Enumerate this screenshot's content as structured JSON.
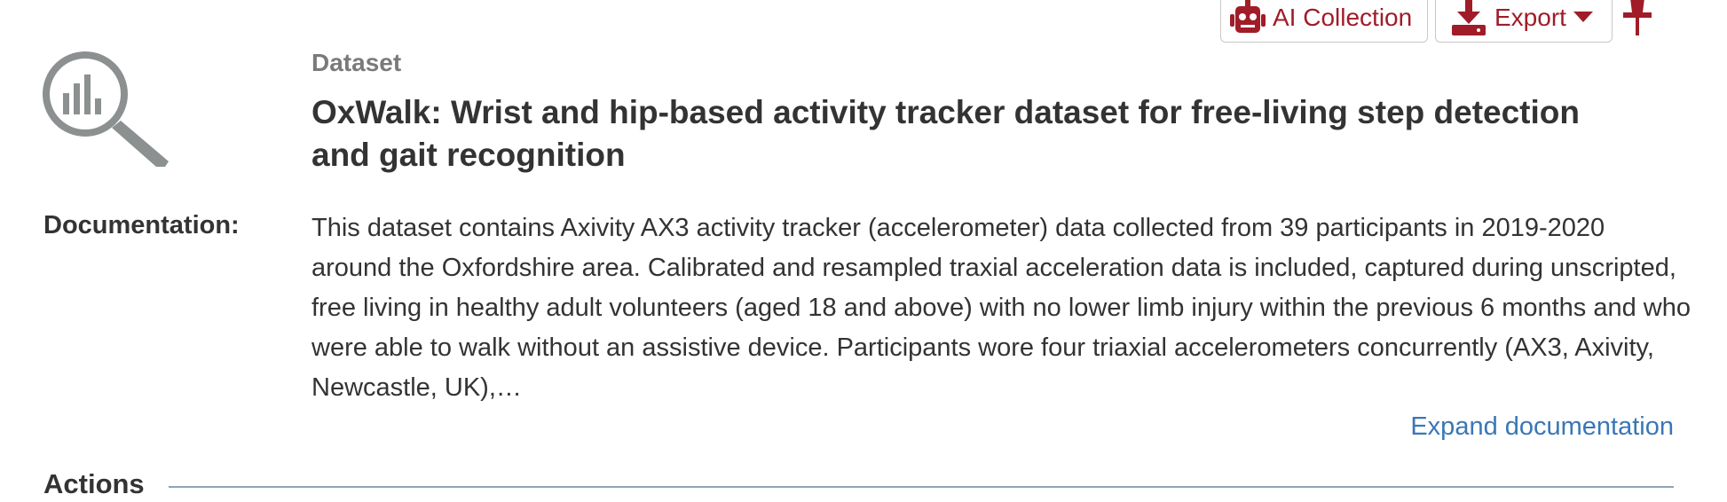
{
  "toolbar": {
    "ai_collection_label": "AI Collection",
    "export_label": "Export"
  },
  "icons": {
    "ai": "robot-icon",
    "export": "download-icon",
    "export_caret": "caret-down-icon",
    "pin": "pin-icon",
    "dataset": "magnifier-chart-icon"
  },
  "colors": {
    "accent": "#a01c28",
    "link": "#3a77b5",
    "muted": "#7a7a7a",
    "rule": "#8fa3b8"
  },
  "record": {
    "type": "Dataset",
    "title": "OxWalk: Wrist and hip-based activity tracker dataset for free-living step detection and gait recognition"
  },
  "documentation": {
    "label": "Documentation:",
    "text": "This dataset contains Axivity AX3 activity tracker (accelerometer) data collected from 39 participants in 2019-2020 around the Oxfordshire area. Calibrated and resampled traxial acceleration data is included, captured during unscripted, free living in healthy adult volunteers (aged 18 and above) with no lower limb injury within the previous 6 months and who were able to walk without an assistive device. Participants wore four triaxial accelerometers concurrently (AX3, Axivity, Newcastle, UK),…",
    "expand_label": "Expand documentation"
  },
  "actions": {
    "heading": "Actions"
  }
}
